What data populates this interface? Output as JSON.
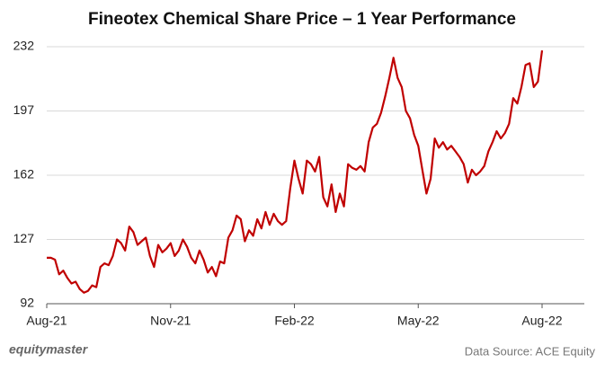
{
  "chart_data": {
    "type": "line",
    "title": "Fineotex Chemical Share Price – 1 Year Performance",
    "categories": [
      "Aug-21",
      null,
      null,
      null,
      null,
      null,
      null,
      null,
      null,
      null,
      null,
      null,
      null,
      null,
      null,
      null,
      null,
      null,
      null,
      null,
      null,
      null,
      null,
      null,
      null,
      null,
      null,
      null,
      null,
      null,
      "Nov-21",
      null,
      null,
      null,
      null,
      null,
      null,
      null,
      null,
      null,
      null,
      null,
      null,
      null,
      null,
      null,
      null,
      null,
      null,
      null,
      null,
      null,
      null,
      null,
      null,
      null,
      null,
      null,
      null,
      null,
      "Feb-22",
      null,
      null,
      null,
      null,
      null,
      null,
      null,
      null,
      null,
      null,
      null,
      null,
      null,
      null,
      null,
      null,
      null,
      null,
      null,
      null,
      null,
      null,
      null,
      null,
      null,
      null,
      null,
      null,
      null,
      "May-22",
      null,
      null,
      null,
      null,
      null,
      null,
      null,
      null,
      null,
      null,
      null,
      null,
      null,
      null,
      null,
      null,
      null,
      null,
      null,
      null,
      null,
      null,
      null,
      null,
      null,
      null,
      null,
      null,
      null,
      "Aug-22"
    ],
    "series": [
      {
        "name": "Fineotex Chemical",
        "color": "#c00000",
        "values": [
          117,
          117,
          116,
          108,
          110,
          106,
          103,
          104,
          100,
          98,
          99,
          102,
          101,
          112,
          114,
          113,
          118,
          127,
          125,
          121,
          134,
          131,
          124,
          126,
          128,
          118,
          112,
          124,
          120,
          122,
          125,
          118,
          121,
          127,
          123,
          117,
          114,
          121,
          116,
          109,
          112,
          107,
          115,
          114,
          128,
          132,
          140,
          138,
          126,
          132,
          129,
          138,
          133,
          142,
          135,
          141,
          137,
          135,
          137,
          155,
          170,
          160,
          152,
          170,
          168,
          164,
          172,
          150,
          145,
          157,
          142,
          152,
          145,
          168,
          166,
          165,
          167,
          164,
          180,
          188,
          190,
          196,
          205,
          215,
          226,
          215,
          210,
          197,
          193,
          184,
          178,
          165,
          152,
          160,
          182,
          177,
          180,
          176,
          178,
          175,
          172,
          168,
          158,
          165,
          162,
          164,
          167,
          175,
          180,
          186,
          182,
          185,
          190,
          204,
          201,
          210,
          222,
          223,
          210,
          213,
          230
        ]
      }
    ],
    "ylim": [
      92,
      232
    ],
    "yticks": [
      92,
      127,
      162,
      197,
      232
    ],
    "grid": true,
    "logo": "equitymaster",
    "source": "Data Source: ACE Equity"
  }
}
